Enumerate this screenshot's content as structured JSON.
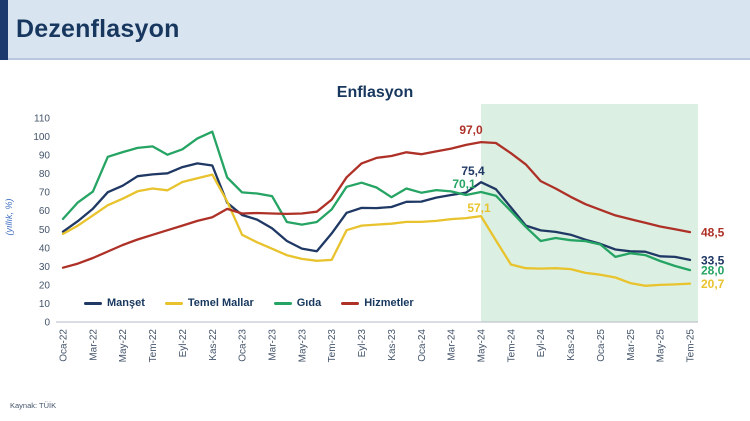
{
  "header": {
    "title": "Dezenflasyon"
  },
  "source": "Kaynak: TÜİK",
  "chart_data": {
    "type": "line",
    "title": "Enflasyon",
    "ylabel": "(yıllık, %)",
    "ylim": [
      0,
      110
    ],
    "y_tick_step": 10,
    "x_tick_every": 2,
    "grid": "off",
    "legend_position": "bottom-left",
    "categories": [
      "Oca-22",
      "Şub-22",
      "Mar-22",
      "Nis-22",
      "May-22",
      "Haz-22",
      "Tem-22",
      "Ağu-22",
      "Eyl-22",
      "Eki-22",
      "Kas-22",
      "Ara-22",
      "Oca-23",
      "Şub-23",
      "Mar-23",
      "Nis-23",
      "May-23",
      "Haz-23",
      "Tem-23",
      "Ağu-23",
      "Eyl-23",
      "Eki-23",
      "Kas-23",
      "Ara-23",
      "Oca-24",
      "Şub-24",
      "Mar-24",
      "Nis-24",
      "May-24",
      "Haz-24",
      "Tem-24",
      "Ağu-24",
      "Eyl-24",
      "Eki-24",
      "Kas-24",
      "Ara-24",
      "Oca-25",
      "Şub-25",
      "Mar-25",
      "Nis-25",
      "May-25",
      "Haz-25",
      "Tem-25"
    ],
    "series": [
      {
        "name": "Manşet",
        "color": "#1f3864",
        "values": [
          48.7,
          54.4,
          61.1,
          70.0,
          73.5,
          78.6,
          79.6,
          80.2,
          83.5,
          85.5,
          84.4,
          64.3,
          57.7,
          55.2,
          50.5,
          43.7,
          39.6,
          38.2,
          47.8,
          58.9,
          61.5,
          61.4,
          62.0,
          64.8,
          64.9,
          67.1,
          68.5,
          69.8,
          75.4,
          71.6,
          61.8,
          52.0,
          49.4,
          48.6,
          47.1,
          44.4,
          42.1,
          39.1,
          38.1,
          37.9,
          35.4,
          35.1,
          33.5
        ]
      },
      {
        "name": "Temel Mallar",
        "color": "#e8c32d",
        "values": [
          47.5,
          52.0,
          57.5,
          63.0,
          66.5,
          70.5,
          72.0,
          71.0,
          75.5,
          77.5,
          79.5,
          65.0,
          47.0,
          43.0,
          39.5,
          36.0,
          34.0,
          33.0,
          33.5,
          49.5,
          52.0,
          52.5,
          53.0,
          54.0,
          54.0,
          54.5,
          55.5,
          56.0,
          57.1,
          44.0,
          31.0,
          29.0,
          28.8,
          29.0,
          28.5,
          26.5,
          25.5,
          24.0,
          21.0,
          19.5,
          20.0,
          20.3,
          20.7
        ]
      },
      {
        "name": "Gıda",
        "color": "#25a463",
        "values": [
          55.6,
          64.5,
          70.3,
          89.1,
          91.6,
          93.9,
          94.7,
          90.2,
          93.1,
          99.0,
          102.6,
          77.9,
          69.9,
          69.3,
          67.9,
          53.9,
          52.5,
          53.9,
          60.7,
          72.9,
          75.1,
          72.5,
          67.3,
          72.0,
          69.7,
          71.1,
          70.4,
          68.5,
          70.1,
          68.1,
          59.8,
          51.3,
          43.7,
          45.3,
          44.1,
          43.6,
          41.8,
          35.1,
          37.1,
          36.1,
          32.9,
          30.2,
          28.0
        ]
      },
      {
        "name": "Hizmetler",
        "color": "#ae3127",
        "values": [
          29.3,
          31.5,
          34.5,
          38.0,
          41.5,
          44.5,
          47.0,
          49.5,
          52.0,
          54.5,
          56.5,
          61.0,
          58.5,
          58.8,
          58.5,
          58.3,
          58.5,
          59.5,
          66.0,
          78.0,
          85.5,
          88.5,
          89.5,
          91.5,
          90.5,
          92.0,
          93.5,
          95.5,
          97.0,
          96.5,
          91.0,
          85.0,
          76.0,
          72.0,
          67.5,
          63.5,
          60.5,
          57.5,
          55.5,
          53.5,
          51.5,
          50.0,
          48.5
        ]
      }
    ],
    "highlight_region": {
      "from_index": 28,
      "to_index": 42,
      "color": "#dcefe3"
    },
    "annotations": [
      {
        "series": "Hizmetler",
        "text": "97,0",
        "index": 28,
        "offset": [
          -10,
          -8
        ]
      },
      {
        "series": "Manşet",
        "text": "75,4",
        "index": 28,
        "offset": [
          -8,
          -7
        ]
      },
      {
        "series": "Gıda",
        "text": "70,1",
        "index": 28,
        "offset": [
          -17,
          -4
        ]
      },
      {
        "series": "Temel Mallar",
        "text": "57,1",
        "index": 28,
        "offset": [
          -2,
          -4
        ]
      }
    ],
    "end_labels": [
      {
        "series": "Hizmetler",
        "text": "48,5"
      },
      {
        "series": "Manşet",
        "text": "33,5"
      },
      {
        "series": "Gıda",
        "text": "28,0"
      },
      {
        "series": "Temel Mallar",
        "text": "20,7"
      }
    ],
    "legend": [
      "Manşet",
      "Temel Mallar",
      "Gıda",
      "Hizmetler"
    ]
  }
}
